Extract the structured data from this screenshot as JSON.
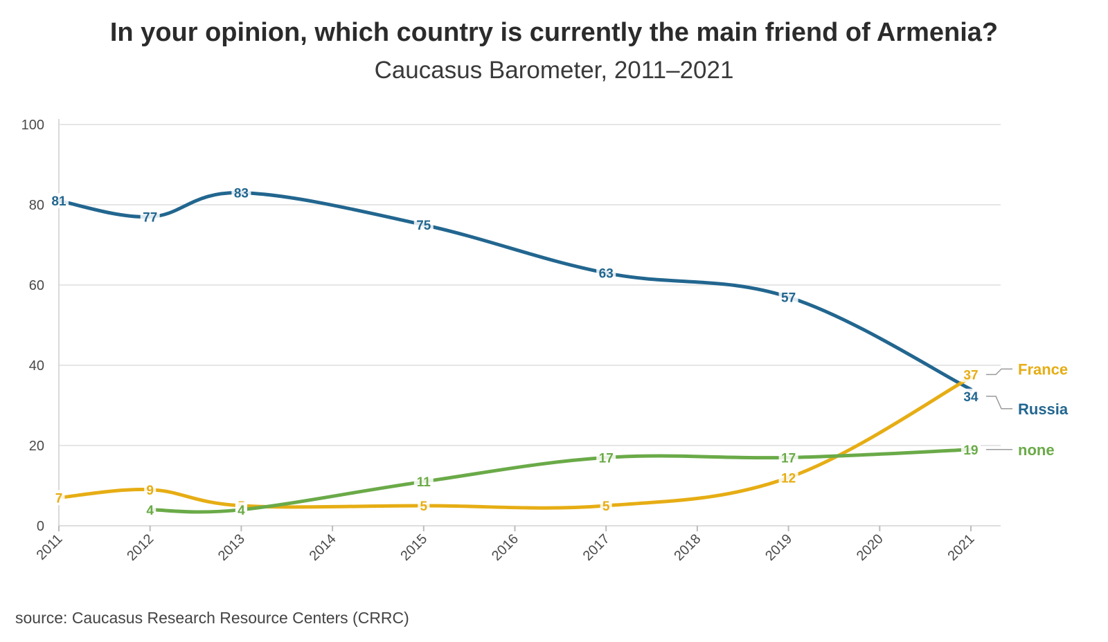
{
  "title": "In your opinion, which country is currently the main friend of Armenia?",
  "subtitle": "Caucasus Barometer, 2011–2021",
  "source": "source: Caucasus Research Resource Centers (CRRC)",
  "chart_data": {
    "type": "line",
    "title": "In your opinion, which country is currently the main friend of Armenia?",
    "subtitle": "Caucasus Barometer, 2011–2021",
    "xlabel": "",
    "ylabel": "",
    "x_ticks": [
      "2011",
      "2012",
      "2013",
      "2014",
      "2015",
      "2016",
      "2017",
      "2018",
      "2019",
      "2020",
      "2021"
    ],
    "y_ticks": [
      0,
      20,
      40,
      60,
      80,
      100
    ],
    "xlim": [
      2011,
      2021
    ],
    "ylim": [
      0,
      100
    ],
    "grid": "horizontal",
    "legend": "labels at line ends",
    "series": [
      {
        "name": "Russia",
        "color": "#22668f",
        "points": [
          [
            2011,
            81
          ],
          [
            2012,
            77
          ],
          [
            2013,
            83
          ],
          [
            2015,
            75
          ],
          [
            2017,
            63
          ],
          [
            2019,
            57
          ],
          [
            2021,
            34
          ]
        ]
      },
      {
        "name": "France",
        "color": "#e6ad14",
        "points": [
          [
            2011,
            7
          ],
          [
            2012,
            9
          ],
          [
            2013,
            5
          ],
          [
            2015,
            5
          ],
          [
            2017,
            5
          ],
          [
            2019,
            12
          ],
          [
            2021,
            37
          ]
        ]
      },
      {
        "name": "none",
        "color": "#6aaa48",
        "points": [
          [
            2012,
            4
          ],
          [
            2013,
            4
          ],
          [
            2015,
            11
          ],
          [
            2017,
            17
          ],
          [
            2019,
            17
          ],
          [
            2021,
            19
          ]
        ]
      }
    ]
  }
}
